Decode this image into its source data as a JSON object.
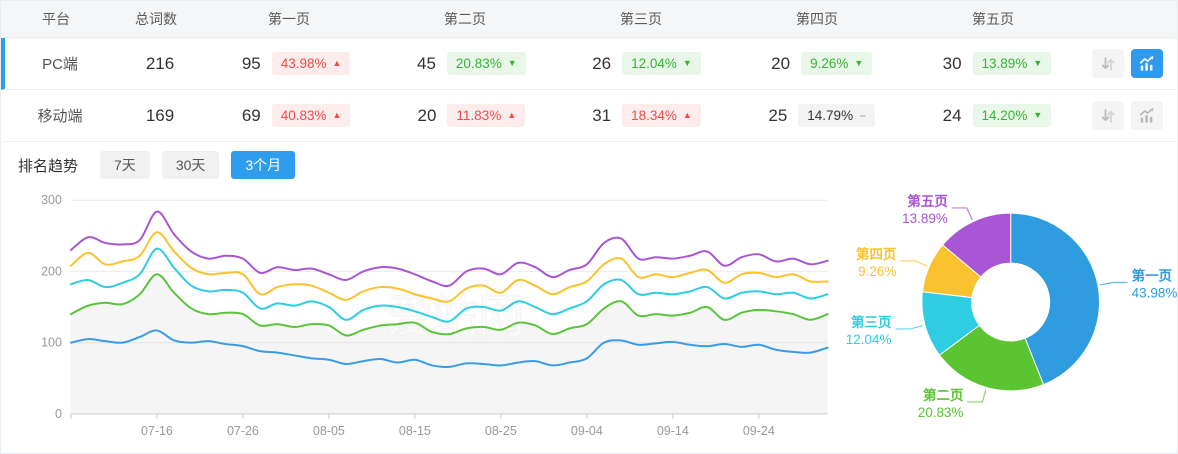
{
  "table": {
    "headers": {
      "platform": "平台",
      "total": "总词数",
      "pages": [
        "第一页",
        "第二页",
        "第三页",
        "第四页",
        "第五页"
      ]
    },
    "rows": [
      {
        "platform": "PC端",
        "total": "216",
        "active": true,
        "pages": [
          {
            "count": "95",
            "pct": "43.98%",
            "dir": "up"
          },
          {
            "count": "45",
            "pct": "20.83%",
            "dir": "down"
          },
          {
            "count": "26",
            "pct": "12.04%",
            "dir": "down"
          },
          {
            "count": "20",
            "pct": "9.26%",
            "dir": "down"
          },
          {
            "count": "30",
            "pct": "13.89%",
            "dir": "down"
          }
        ]
      },
      {
        "platform": "移动端",
        "total": "169",
        "active": false,
        "pages": [
          {
            "count": "69",
            "pct": "40.83%",
            "dir": "up"
          },
          {
            "count": "20",
            "pct": "11.83%",
            "dir": "up"
          },
          {
            "count": "31",
            "pct": "18.34%",
            "dir": "up"
          },
          {
            "count": "25",
            "pct": "14.79%",
            "dir": "flat"
          },
          {
            "count": "24",
            "pct": "14.20%",
            "dir": "down"
          }
        ]
      }
    ]
  },
  "trend": {
    "title": "排名趋势",
    "tabs": [
      {
        "label": "7天",
        "active": false
      },
      {
        "label": "30天",
        "active": false
      },
      {
        "label": "3个月",
        "active": true
      }
    ]
  },
  "watermark": {
    "text": "爱站网"
  },
  "colors": {
    "accent": "#2b9df3",
    "badge_up_bg": "#fdecec",
    "badge_up_text": "#ef4b4b",
    "badge_down_bg": "#e9f7e9",
    "badge_down_text": "#35b335",
    "badge_flat_bg": "#f3f3f3",
    "badge_flat_text": "#333333",
    "series": {
      "page1": "#3b9ce3",
      "page2": "#5ac43c",
      "page3": "#2fcde2",
      "page4": "#f9c22e",
      "page5": "#a855d6"
    }
  },
  "chart_data": [
    {
      "type": "line",
      "title": "排名趋势（3个月）",
      "ylim": [
        0,
        300
      ],
      "yticks": [
        0,
        100,
        200,
        300
      ],
      "grid": true,
      "legend": "none",
      "x_start": "07-06",
      "x_step_days": 2,
      "xtick_labels": [
        "07-16",
        "07-26",
        "08-05",
        "08-15",
        "08-25",
        "09-04",
        "09-14",
        "09-24"
      ],
      "xtick_indices": [
        5,
        10,
        15,
        20,
        25,
        30,
        35,
        40
      ],
      "note": "y values as plotted; lines are cumulative page counts (第一页 … 第一页+…+第五页)",
      "series": [
        {
          "name": "第一页",
          "color": "#3b9ce3",
          "area": false,
          "values": [
            100,
            105,
            102,
            100,
            108,
            117,
            103,
            100,
            102,
            98,
            95,
            88,
            86,
            82,
            78,
            76,
            70,
            74,
            77,
            72,
            76,
            68,
            66,
            71,
            70,
            68,
            72,
            74,
            68,
            72,
            78,
            100,
            103,
            97,
            99,
            101,
            97,
            95,
            98,
            94,
            97,
            90,
            87,
            86,
            93
          ]
        },
        {
          "name": "第二页",
          "color": "#5ac43c",
          "area": true,
          "values": [
            140,
            152,
            156,
            154,
            168,
            196,
            170,
            148,
            140,
            142,
            140,
            124,
            126,
            122,
            126,
            124,
            110,
            118,
            124,
            126,
            128,
            115,
            112,
            120,
            122,
            118,
            128,
            124,
            112,
            120,
            126,
            148,
            158,
            138,
            140,
            138,
            142,
            150,
            132,
            142,
            146,
            144,
            140,
            132,
            140
          ]
        },
        {
          "name": "第三页",
          "color": "#2fcde2",
          "area": false,
          "values": [
            182,
            188,
            178,
            184,
            196,
            232,
            205,
            180,
            172,
            174,
            170,
            148,
            155,
            152,
            158,
            150,
            132,
            146,
            152,
            150,
            144,
            136,
            130,
            148,
            150,
            145,
            158,
            150,
            140,
            148,
            158,
            182,
            188,
            168,
            170,
            168,
            172,
            178,
            162,
            170,
            172,
            168,
            170,
            162,
            168
          ]
        },
        {
          "name": "第四页",
          "color": "#f9c22e",
          "area": false,
          "values": [
            208,
            226,
            210,
            214,
            222,
            255,
            228,
            205,
            196,
            198,
            196,
            168,
            178,
            182,
            180,
            170,
            160,
            172,
            178,
            176,
            168,
            162,
            158,
            176,
            180,
            170,
            188,
            180,
            168,
            178,
            186,
            210,
            218,
            192,
            196,
            192,
            198,
            202,
            184,
            196,
            198,
            192,
            196,
            186,
            186
          ]
        },
        {
          "name": "第五页",
          "color": "#a855d6",
          "area": false,
          "values": [
            230,
            248,
            240,
            238,
            244,
            284,
            252,
            228,
            218,
            222,
            218,
            198,
            206,
            202,
            204,
            196,
            188,
            200,
            206,
            204,
            196,
            186,
            180,
            200,
            204,
            196,
            212,
            206,
            192,
            202,
            210,
            240,
            246,
            218,
            220,
            218,
            222,
            228,
            208,
            220,
            224,
            214,
            218,
            210,
            215
          ]
        }
      ]
    },
    {
      "type": "pie",
      "donut": true,
      "start_angle": "top",
      "direction": "clockwise",
      "labels": [
        "第一页",
        "第二页",
        "第三页",
        "第四页",
        "第五页"
      ],
      "values": [
        43.98,
        20.83,
        12.04,
        9.26,
        13.89
      ],
      "unit": "%",
      "colors": [
        "#2f9cdf",
        "#5ac431",
        "#2fcde2",
        "#f9c22e",
        "#a855d6"
      ],
      "label_position": "outside"
    }
  ]
}
